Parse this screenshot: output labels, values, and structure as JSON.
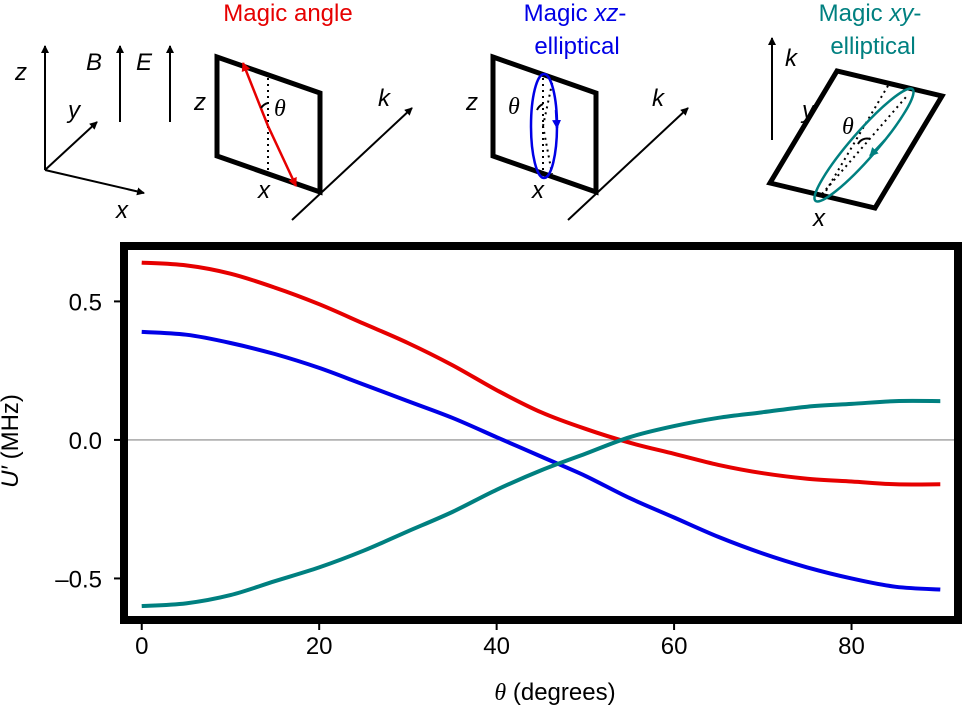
{
  "diagrams": {
    "axes": {
      "z": "z",
      "y": "y",
      "x": "x",
      "b": "B",
      "e": "E"
    },
    "magic_angle": {
      "title": "Magic angle",
      "z": "z",
      "x": "x",
      "theta": "θ",
      "k": "k",
      "color": "#e60000"
    },
    "magic_xz": {
      "title_prefix": "Magic ",
      "title_italic": "xz",
      "title_suffix": "-",
      "title_line2": "elliptical",
      "z": "z",
      "x": "x",
      "theta": "θ",
      "k": "k",
      "color": "#0000e6"
    },
    "magic_xy": {
      "title_prefix": "Magic ",
      "title_italic": "xy",
      "title_suffix": "-",
      "title_line2": "elliptical",
      "k": "k",
      "y": "y",
      "x": "x",
      "theta": "θ",
      "color": "#008080"
    }
  },
  "chart_data": {
    "type": "line",
    "title": "",
    "xlabel_symbol": "θ",
    "xlabel_text": " (degrees)",
    "ylabel_symbol": "U′",
    "ylabel_text": " (MHz)",
    "xlim": [
      -2,
      92
    ],
    "ylim": [
      -0.65,
      0.7
    ],
    "xticks": [
      0,
      20,
      40,
      60,
      80
    ],
    "xtick_labels": [
      "0",
      "20",
      "40",
      "60",
      "80"
    ],
    "yticks": [
      0.5,
      0.0,
      -0.5
    ],
    "ytick_labels": [
      "0.5",
      "0.0",
      "–0.5"
    ],
    "zero_line": true,
    "series": [
      {
        "name": "Magic angle",
        "color": "#e60000",
        "x": [
          0,
          5,
          10,
          15,
          20,
          25,
          30,
          35,
          40,
          45,
          50,
          55,
          60,
          65,
          70,
          75,
          80,
          85,
          90
        ],
        "y": [
          0.64,
          0.63,
          0.6,
          0.55,
          0.49,
          0.42,
          0.35,
          0.27,
          0.18,
          0.1,
          0.04,
          -0.01,
          -0.05,
          -0.09,
          -0.12,
          -0.14,
          -0.15,
          -0.16,
          -0.16
        ]
      },
      {
        "name": "Magic xz-elliptical",
        "color": "#0000e6",
        "x": [
          0,
          5,
          10,
          15,
          20,
          25,
          30,
          35,
          40,
          45,
          50,
          55,
          60,
          65,
          70,
          75,
          80,
          85,
          90
        ],
        "y": [
          0.39,
          0.38,
          0.35,
          0.31,
          0.26,
          0.2,
          0.14,
          0.08,
          0.01,
          -0.06,
          -0.13,
          -0.21,
          -0.28,
          -0.35,
          -0.41,
          -0.46,
          -0.5,
          -0.53,
          -0.54
        ]
      },
      {
        "name": "Magic xy-elliptical",
        "color": "#008080",
        "x": [
          0,
          5,
          10,
          15,
          20,
          25,
          30,
          35,
          40,
          45,
          50,
          55,
          60,
          65,
          70,
          75,
          80,
          85,
          90
        ],
        "y": [
          -0.6,
          -0.59,
          -0.56,
          -0.51,
          -0.46,
          -0.4,
          -0.33,
          -0.26,
          -0.18,
          -0.11,
          -0.05,
          0.01,
          0.05,
          0.08,
          0.1,
          0.12,
          0.13,
          0.14,
          0.14
        ]
      }
    ]
  }
}
